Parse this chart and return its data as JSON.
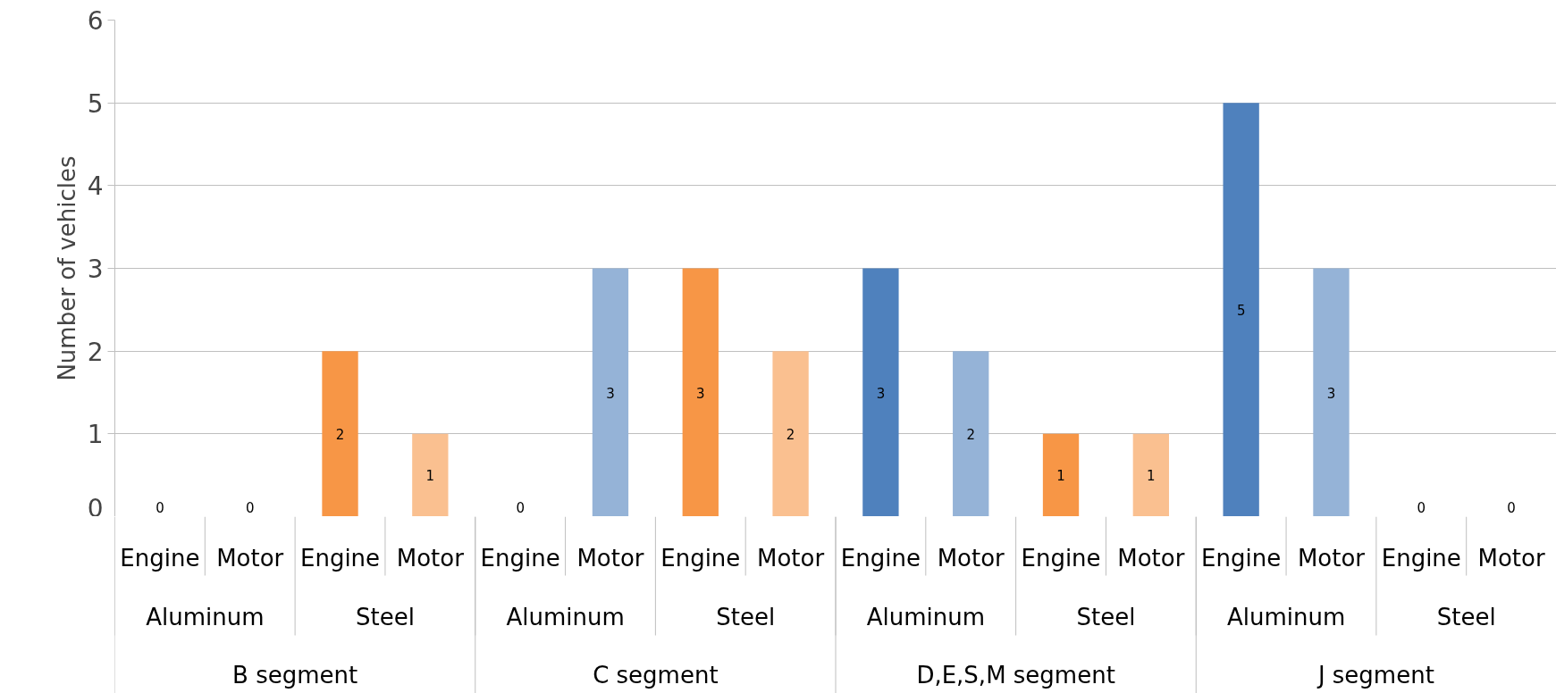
{
  "chart_data": {
    "type": "bar",
    "ylabel": "Number of vehicles",
    "categories": [
      "Engine",
      "Motor",
      "Engine",
      "Motor",
      "Engine",
      "Motor",
      "Engine",
      "Motor",
      "Engine",
      "Motor",
      "Engine",
      "Motor",
      "Engine",
      "Motor",
      "Engine",
      "Motor"
    ],
    "values": [
      0,
      0,
      2,
      1,
      0,
      3,
      3,
      2,
      3,
      2,
      1,
      1,
      5,
      3,
      0,
      0
    ],
    "colors": [
      "#4f81bd",
      "#95b3d7",
      "#f79646",
      "#fac090",
      "#4f81bd",
      "#95b3d7",
      "#f79646",
      "#fac090",
      "#4f81bd",
      "#95b3d7",
      "#f79646",
      "#fac090",
      "#4f81bd",
      "#95b3d7",
      "#f79646",
      "#fac090"
    ],
    "annotations": [
      "Aluminum",
      "Steel",
      "Aluminum",
      "Steel",
      "Aluminum",
      "Steel",
      "Aluminum",
      "Steel",
      "B segment",
      "C segment",
      "D,E,S,M segment",
      "J segment"
    ],
    "ylim": [
      0,
      6
    ],
    "yticks": [
      0,
      1,
      2,
      3,
      4,
      5,
      6
    ],
    "grid": "y",
    "data_labels": true
  }
}
